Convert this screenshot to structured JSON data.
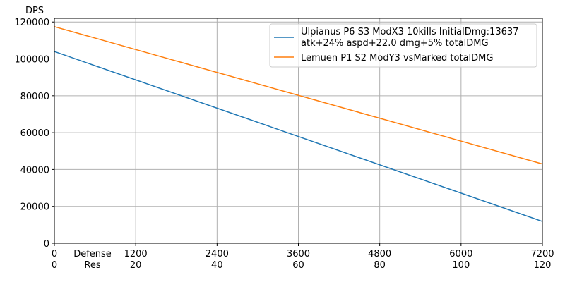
{
  "chart_data": {
    "type": "line",
    "ylabel": "DPS",
    "xlabel_lines": [
      "Defense",
      "Res"
    ],
    "xlim": [
      0,
      7200
    ],
    "ylim": [
      0,
      122000
    ],
    "x_ticks": [
      {
        "def": "0",
        "res": "0"
      },
      {
        "def": "1200",
        "res": "20"
      },
      {
        "def": "2400",
        "res": "40"
      },
      {
        "def": "3600",
        "res": "60"
      },
      {
        "def": "4800",
        "res": "80"
      },
      {
        "def": "6000",
        "res": "100"
      },
      {
        "def": "7200",
        "res": "120"
      }
    ],
    "x_tick_values": [
      0,
      1200,
      2400,
      3600,
      4800,
      6000,
      7200
    ],
    "y_ticks": [
      "0",
      "20000",
      "40000",
      "60000",
      "80000",
      "100000",
      "120000"
    ],
    "y_tick_values": [
      0,
      20000,
      40000,
      60000,
      80000,
      100000,
      120000
    ],
    "grid": true,
    "legend_position": "top-right",
    "series": [
      {
        "name": "Ulpianus P6 S3 ModX3 10kills InitialDmg:13637 atk+24% aspd+22.0 dmg+5% totalDMG",
        "name_lines": [
          "Ulpianus P6 S3 ModX3 10kills InitialDmg:13637",
          "atk+24% aspd+22.0 dmg+5% totalDMG"
        ],
        "color": "#1f77b4",
        "x": [
          0,
          7200
        ],
        "y": [
          104000,
          11800
        ]
      },
      {
        "name": "Lemuen P1 S2 ModY3 vsMarked totalDMG",
        "name_lines": [
          "Lemuen P1 S2 ModY3 vsMarked totalDMG"
        ],
        "color": "#ff7f0e",
        "x": [
          0,
          7200
        ],
        "y": [
          117500,
          43000
        ]
      }
    ]
  }
}
